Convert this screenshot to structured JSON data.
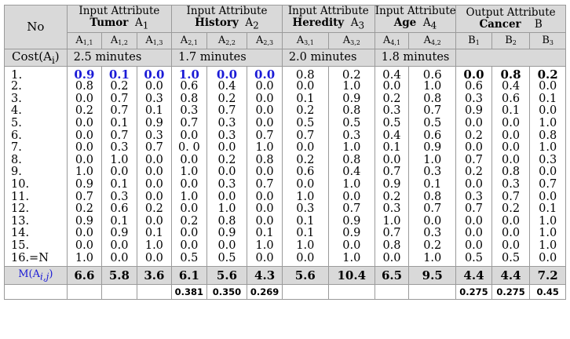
{
  "header": {
    "no": "No",
    "cost": "Cost(A",
    "cost_sub": "i",
    "cost_close": ")",
    "groups": [
      {
        "top": "Input Attribute",
        "name": "Tumor",
        "sym": "A",
        "sub": "1"
      },
      {
        "top": "Input Attribute",
        "name": "History",
        "sym": "A",
        "sub": "2"
      },
      {
        "top": "Input Attribute",
        "name": "Heredity",
        "sym": "A",
        "sub": "3"
      },
      {
        "top": "Input Attribute",
        "name": "Age",
        "sym": "A",
        "sub": "4"
      },
      {
        "top": "Output Attribute",
        "name": "Cancer",
        "sym": "B",
        "sub": ""
      }
    ],
    "subheads": [
      {
        "base": "A",
        "sub": "1,1"
      },
      {
        "base": "A",
        "sub": "1,2"
      },
      {
        "base": "A",
        "sub": "1,3"
      },
      {
        "base": "A",
        "sub": "2,1"
      },
      {
        "base": "A",
        "sub": "2,2"
      },
      {
        "base": "A",
        "sub": "2,3"
      },
      {
        "base": "A",
        "sub": "3,1"
      },
      {
        "base": "A",
        "sub": "3,2"
      },
      {
        "base": "A",
        "sub": "4,1"
      },
      {
        "base": "A",
        "sub": "4,2"
      },
      {
        "base": "B",
        "sub": "1"
      },
      {
        "base": "B",
        "sub": "2"
      },
      {
        "base": "B",
        "sub": "3"
      }
    ],
    "costs": [
      "2.5 minutes",
      "1.7 minutes",
      "2.0 minutes",
      "1.8 minutes",
      ""
    ]
  },
  "row_labels": [
    "1.",
    "2.",
    "3.",
    "4.",
    "5.",
    "6.",
    "7.",
    "8.",
    "9.",
    "10.",
    "11.",
    "12.",
    "13.",
    "14.",
    "15.",
    "16.=N"
  ],
  "rows": [
    [
      "0.9",
      "0.1",
      "0.0",
      "1.0",
      "0.0",
      "0.0",
      "0.8",
      "0.2",
      "0.4",
      "0.6",
      "0.0",
      "0.8",
      "0.2"
    ],
    [
      "0.8",
      "0.2",
      "0.0",
      "0.6",
      "0.4",
      "0.0",
      "0.0",
      "1.0",
      "0.0",
      "1.0",
      "0.6",
      "0.4",
      "0.0"
    ],
    [
      "0.0",
      "0.7",
      "0.3",
      "0.8",
      "0.2",
      "0.0",
      "0.1",
      "0.9",
      "0.2",
      "0.8",
      "0.3",
      "0.6",
      "0.1"
    ],
    [
      "0.2",
      "0.7",
      "0.1",
      "0.3",
      "0.7",
      "0.0",
      "0.2",
      "0.8",
      "0.3",
      "0.7",
      "0.9",
      "0.1",
      "0.0"
    ],
    [
      "0.0",
      "0.1",
      "0.9",
      "0.7",
      "0.3",
      "0.0",
      "0.5",
      "0.5",
      "0.5",
      "0.5",
      "0.0",
      "0.0",
      "1.0"
    ],
    [
      "0.0",
      "0.7",
      "0.3",
      "0.0",
      "0.3",
      "0.7",
      "0.7",
      "0.3",
      "0.4",
      "0.6",
      "0.2",
      "0.0",
      "0.8"
    ],
    [
      "0.0",
      "0.3",
      "0.7",
      "0. 0",
      "0.0",
      "1.0",
      "0.0",
      "1.0",
      "0.1",
      "0.9",
      "0.0",
      "0.0",
      "1.0"
    ],
    [
      "0.0",
      "1.0",
      "0.0",
      "0.0",
      "0.2",
      "0.8",
      "0.2",
      "0.8",
      "0.0",
      "1.0",
      "0.7",
      "0.0",
      "0.3"
    ],
    [
      "1.0",
      "0.0",
      "0.0",
      "1.0",
      "0.0",
      "0.0",
      "0.6",
      "0.4",
      "0.7",
      "0.3",
      "0.2",
      "0.8",
      "0.0"
    ],
    [
      "0.9",
      "0.1",
      "0.0",
      "0.0",
      "0.3",
      "0.7",
      "0.0",
      "1.0",
      "0.9",
      "0.1",
      "0.0",
      "0.3",
      "0.7"
    ],
    [
      "0.7",
      "0.3",
      "0.0",
      "1.0",
      "0.0",
      "0.0",
      "1.0",
      "0.0",
      "0.2",
      "0.8",
      "0.3",
      "0.7",
      "0.0"
    ],
    [
      "0.2",
      "0.6",
      "0.2",
      "0.0",
      "1.0",
      "0.0",
      "0.3",
      "0.7",
      "0.3",
      "0.7",
      "0.7",
      "0.2",
      "0.1"
    ],
    [
      "0.9",
      "0.1",
      "0.0",
      "0.2",
      "0.8",
      "0.0",
      "0.1",
      "0.9",
      "1.0",
      "0.0",
      "0.0",
      "0.0",
      "1.0"
    ],
    [
      "0.0",
      "0.9",
      "0.1",
      "0.0",
      "0.9",
      "0.1",
      "0.1",
      "0.9",
      "0.7",
      "0.3",
      "0.0",
      "0.0",
      "1.0"
    ],
    [
      "0.0",
      "0.0",
      "1.0",
      "0.0",
      "0.0",
      "1.0",
      "1.0",
      "0.0",
      "0.8",
      "0.2",
      "0.0",
      "0.0",
      "1.0"
    ],
    [
      "1.0",
      "0.0",
      "0.0",
      "0.5",
      "0.5",
      "0.0",
      "0.0",
      "1.0",
      "0.0",
      "1.0",
      "0.5",
      "0.5",
      "0.0"
    ]
  ],
  "m_row": {
    "label": "M(A",
    "label_sub": "i,j",
    "label_close": ")",
    "values": [
      "6.6",
      "5.8",
      "3.6",
      "6.1",
      "5.6",
      "4.3",
      "5.6",
      "10.4",
      "6.5",
      "9.5",
      "4.4",
      "4.4",
      "7.2"
    ]
  },
  "weights_row": [
    "",
    "",
    "",
    "0.381",
    "0.350",
    "0.269",
    "",
    "",
    "",
    "",
    "0.275",
    "0.275",
    "0.45"
  ],
  "colors": {
    "highlight_text": "#1a1ad6",
    "header_bg": "#d9d9d9",
    "border": "#9a9a9a"
  }
}
